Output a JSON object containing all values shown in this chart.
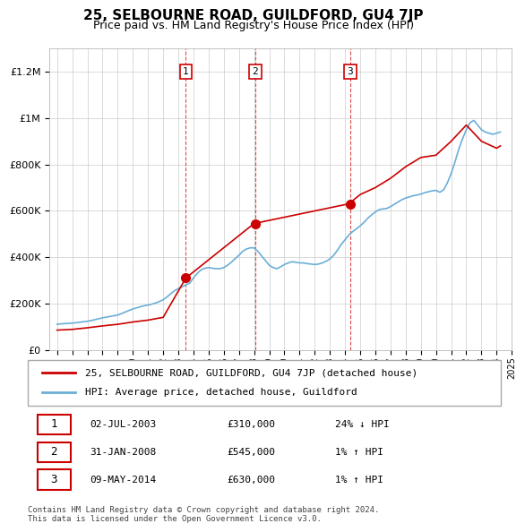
{
  "title": "25, SELBOURNE ROAD, GUILDFORD, GU4 7JP",
  "subtitle": "Price paid vs. HM Land Registry's House Price Index (HPI)",
  "hpi_label": "HPI: Average price, detached house, Guildford",
  "property_label": "25, SELBOURNE ROAD, GUILDFORD, GU4 7JP (detached house)",
  "footer": "Contains HM Land Registry data © Crown copyright and database right 2024.\nThis data is licensed under the Open Government Licence v3.0.",
  "ylim": [
    0,
    1300000
  ],
  "yticks": [
    0,
    200000,
    400000,
    600000,
    800000,
    1000000,
    1200000
  ],
  "ytick_labels": [
    "£0",
    "£200K",
    "£400K",
    "£600K",
    "£800K",
    "£1M",
    "£1.2M"
  ],
  "sale_dates": [
    "2003-07-02",
    "2008-01-31",
    "2014-05-09"
  ],
  "sale_prices": [
    310000,
    545000,
    630000
  ],
  "sale_labels": [
    "1",
    "2",
    "3"
  ],
  "sale_info": [
    {
      "label": "1",
      "date": "02-JUL-2003",
      "price": "£310,000",
      "hpi": "24% ↓ HPI"
    },
    {
      "label": "2",
      "date": "31-JAN-2008",
      "price": "£545,000",
      "hpi": "1% ↑ HPI"
    },
    {
      "label": "3",
      "date": "09-MAY-2014",
      "price": "£630,000",
      "hpi": "1% ↑ HPI"
    }
  ],
  "hpi_color": "#6baed6",
  "sale_color": "#cc0000",
  "vline_color": "#cc0000",
  "grid_color": "#cccccc",
  "background_color": "#ffffff",
  "hpi_data": {
    "years": [
      1995.0,
      1995.25,
      1995.5,
      1995.75,
      1996.0,
      1996.25,
      1996.5,
      1996.75,
      1997.0,
      1997.25,
      1997.5,
      1997.75,
      1998.0,
      1998.25,
      1998.5,
      1998.75,
      1999.0,
      1999.25,
      1999.5,
      1999.75,
      2000.0,
      2000.25,
      2000.5,
      2000.75,
      2001.0,
      2001.25,
      2001.5,
      2001.75,
      2002.0,
      2002.25,
      2002.5,
      2002.75,
      2003.0,
      2003.25,
      2003.5,
      2003.75,
      2004.0,
      2004.25,
      2004.5,
      2004.75,
      2005.0,
      2005.25,
      2005.5,
      2005.75,
      2006.0,
      2006.25,
      2006.5,
      2006.75,
      2007.0,
      2007.25,
      2007.5,
      2007.75,
      2008.0,
      2008.25,
      2008.5,
      2008.75,
      2009.0,
      2009.25,
      2009.5,
      2009.75,
      2010.0,
      2010.25,
      2010.5,
      2010.75,
      2011.0,
      2011.25,
      2011.5,
      2011.75,
      2012.0,
      2012.25,
      2012.5,
      2012.75,
      2013.0,
      2013.25,
      2013.5,
      2013.75,
      2014.0,
      2014.25,
      2014.5,
      2014.75,
      2015.0,
      2015.25,
      2015.5,
      2015.75,
      2016.0,
      2016.25,
      2016.5,
      2016.75,
      2017.0,
      2017.25,
      2017.5,
      2017.75,
      2018.0,
      2018.25,
      2018.5,
      2018.75,
      2019.0,
      2019.25,
      2019.5,
      2019.75,
      2020.0,
      2020.25,
      2020.5,
      2020.75,
      2021.0,
      2021.25,
      2021.5,
      2021.75,
      2022.0,
      2022.25,
      2022.5,
      2022.75,
      2023.0,
      2023.25,
      2023.5,
      2023.75,
      2024.0,
      2024.25
    ],
    "values": [
      110000,
      112000,
      113000,
      114000,
      115000,
      117000,
      119000,
      121000,
      123000,
      126000,
      130000,
      134000,
      138000,
      141000,
      144000,
      147000,
      150000,
      156000,
      163000,
      170000,
      176000,
      181000,
      186000,
      190000,
      193000,
      197000,
      202000,
      208000,
      216000,
      228000,
      242000,
      255000,
      264000,
      272000,
      280000,
      288000,
      310000,
      330000,
      345000,
      352000,
      355000,
      352000,
      350000,
      350000,
      355000,
      365000,
      378000,
      393000,
      408000,
      425000,
      435000,
      440000,
      440000,
      425000,
      405000,
      385000,
      365000,
      355000,
      350000,
      358000,
      368000,
      375000,
      380000,
      378000,
      375000,
      375000,
      372000,
      370000,
      368000,
      370000,
      375000,
      382000,
      392000,
      408000,
      430000,
      455000,
      475000,
      495000,
      510000,
      522000,
      535000,
      550000,
      568000,
      582000,
      595000,
      605000,
      608000,
      610000,
      618000,
      628000,
      638000,
      648000,
      655000,
      660000,
      665000,
      668000,
      672000,
      678000,
      682000,
      686000,
      688000,
      680000,
      690000,
      720000,
      760000,
      810000,
      865000,
      910000,
      950000,
      980000,
      990000,
      970000,
      950000,
      940000,
      935000,
      930000,
      935000,
      940000
    ]
  },
  "red_line_data": {
    "years": [
      1995.0,
      1996.0,
      1997.0,
      1998.0,
      1999.0,
      2000.0,
      2001.0,
      2002.0,
      2003.5,
      2008.0,
      2014.25,
      2015.0,
      2016.0,
      2017.0,
      2018.0,
      2019.0,
      2020.0,
      2021.0,
      2022.0,
      2023.0,
      2024.0,
      2024.25
    ],
    "values": [
      85000,
      88000,
      95000,
      103000,
      110000,
      120000,
      128000,
      140000,
      310000,
      545000,
      630000,
      670000,
      700000,
      740000,
      790000,
      830000,
      840000,
      900000,
      970000,
      900000,
      870000,
      880000
    ]
  }
}
